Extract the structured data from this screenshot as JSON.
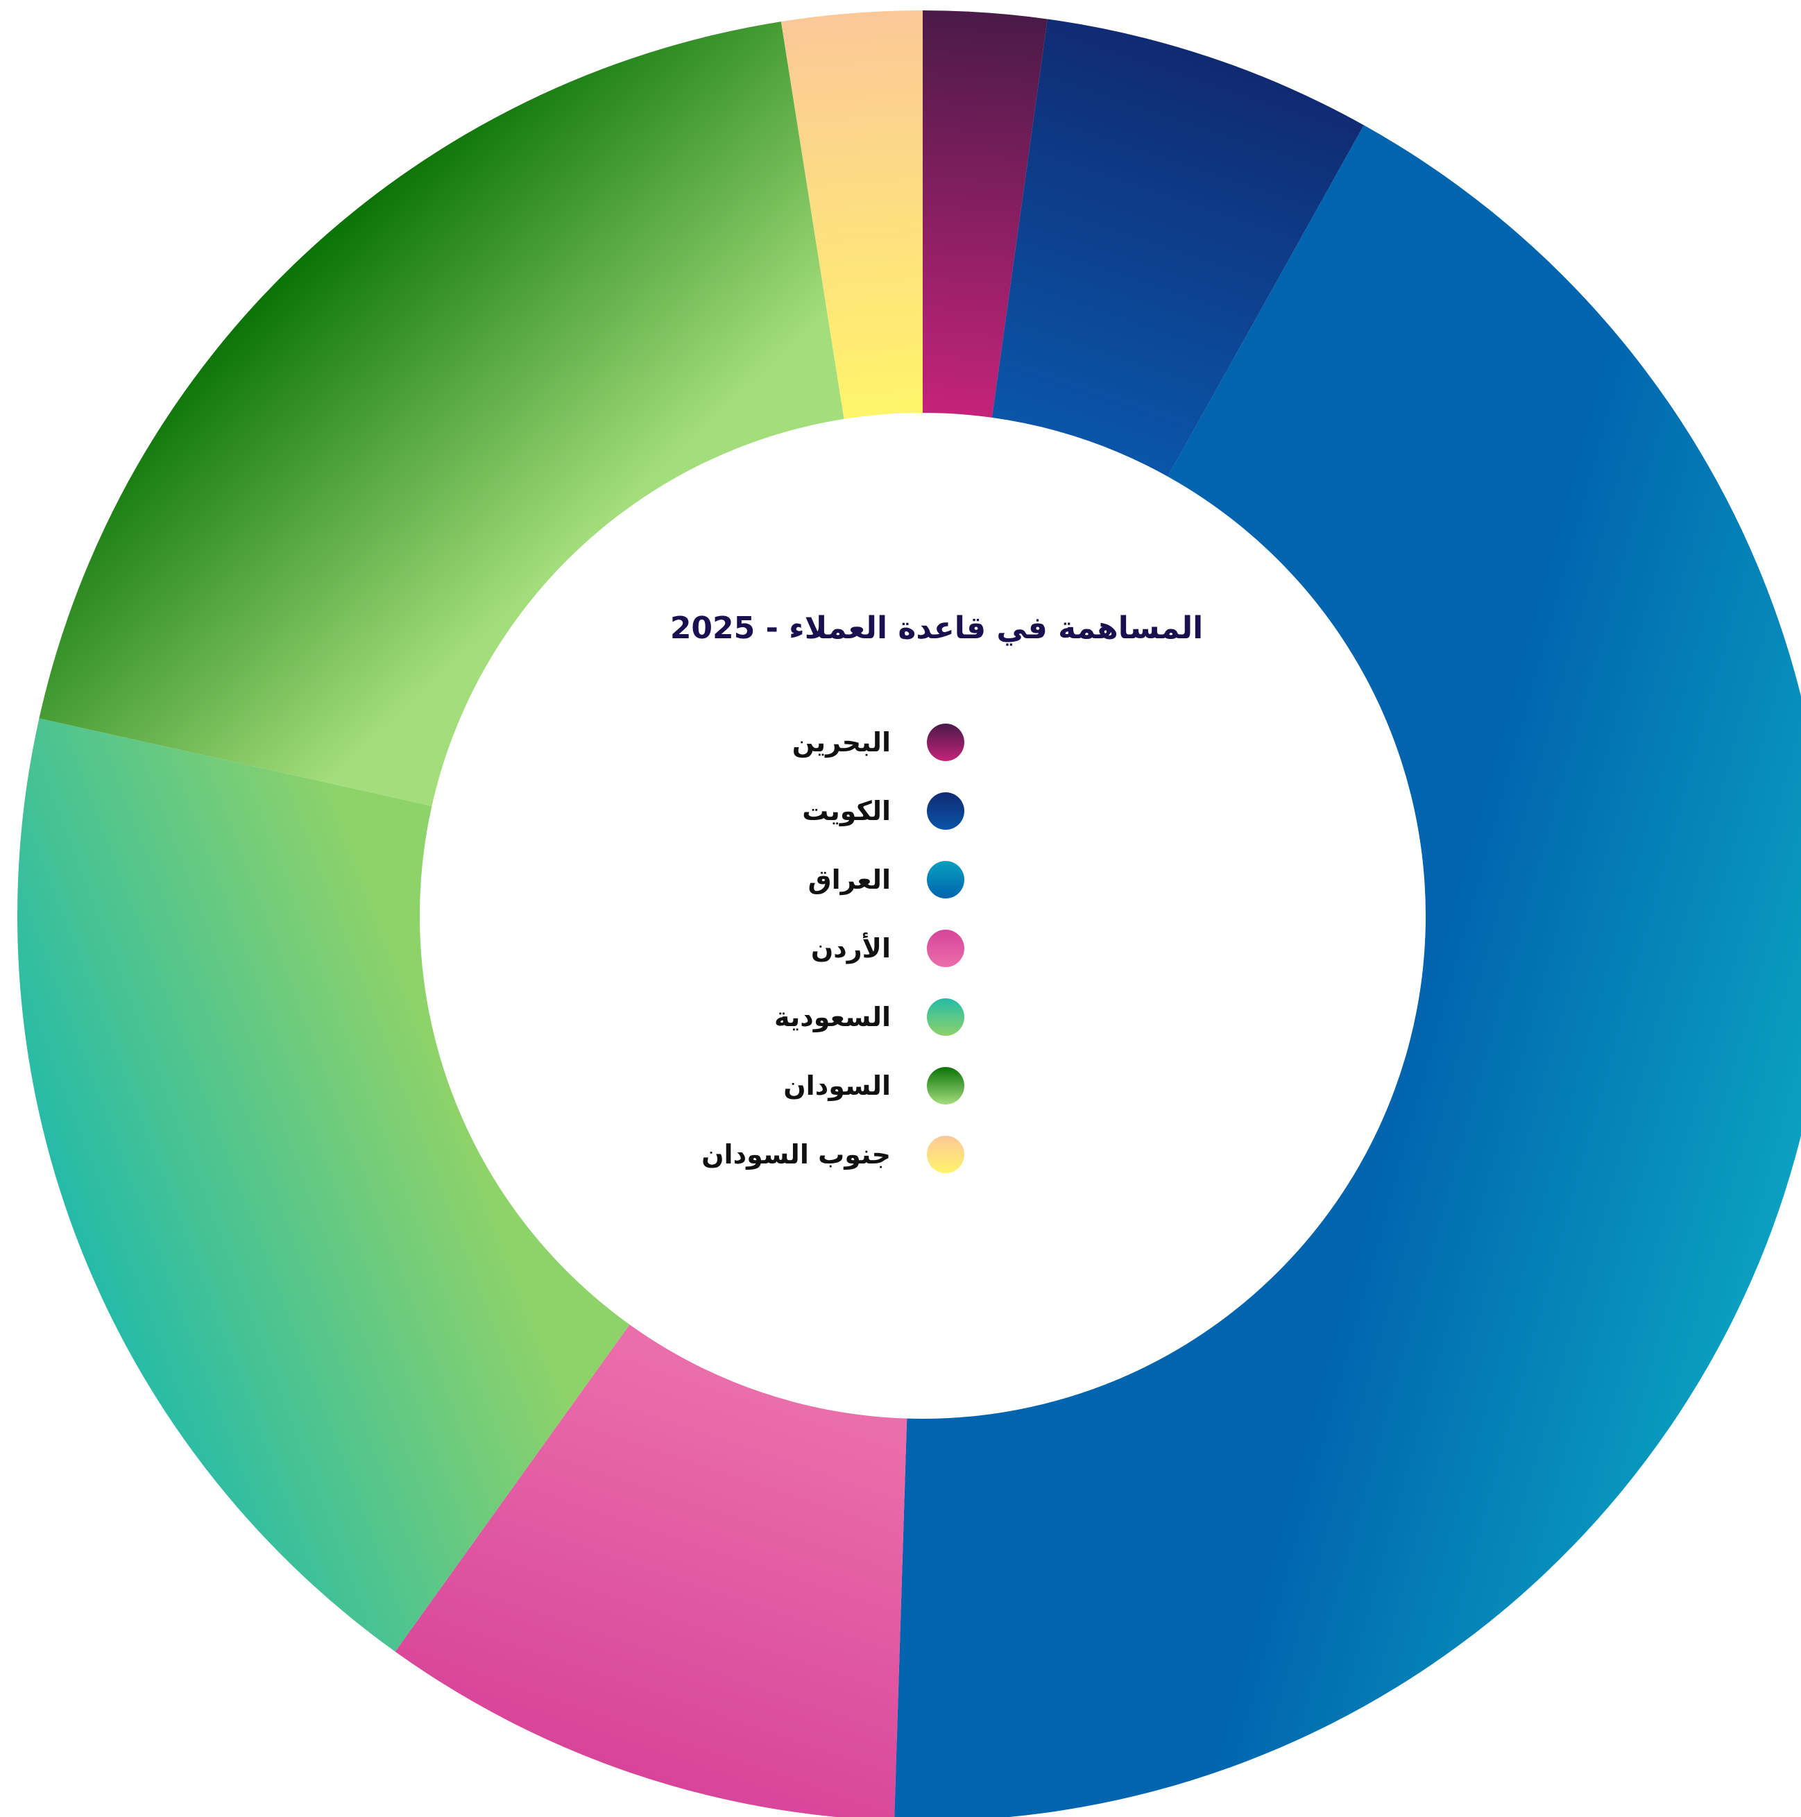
{
  "chart_data": {
    "type": "pie",
    "title": "المساهمة في قاعدة العملاء - 2025",
    "categories": [
      "البحرين",
      "الكويت",
      "العراق",
      "الأردن",
      "السعودية",
      "السودان",
      "جنوب السودان"
    ],
    "values": [
      2.2,
      5.9,
      42.4,
      9.4,
      18.6,
      19.0,
      2.5
    ],
    "unit": "%",
    "legend_position": "center",
    "colors": {
      "البحرين": [
        "#4a1a48",
        "#c4237a"
      ],
      "الكويت": [
        "#102a72",
        "#0a55a8"
      ],
      "العراق": [
        "#0aa0c0",
        "#0064ae"
      ],
      "الأردن": [
        "#d8449a",
        "#ea6eaa"
      ],
      "السعودية": [
        "#25bba8",
        "#8ed26a"
      ],
      "السودان": [
        "#0a7306",
        "#a4dd7c"
      ],
      "جنوب السودان": [
        "#fbc898",
        "#fff46a"
      ]
    }
  },
  "legend": {
    "items": [
      {
        "label": "البحرين"
      },
      {
        "label": "الكويت"
      },
      {
        "label": "العراق"
      },
      {
        "label": "الأردن"
      },
      {
        "label": "السعودية"
      },
      {
        "label": "السودان"
      },
      {
        "label": "جنوب السودان"
      }
    ]
  }
}
